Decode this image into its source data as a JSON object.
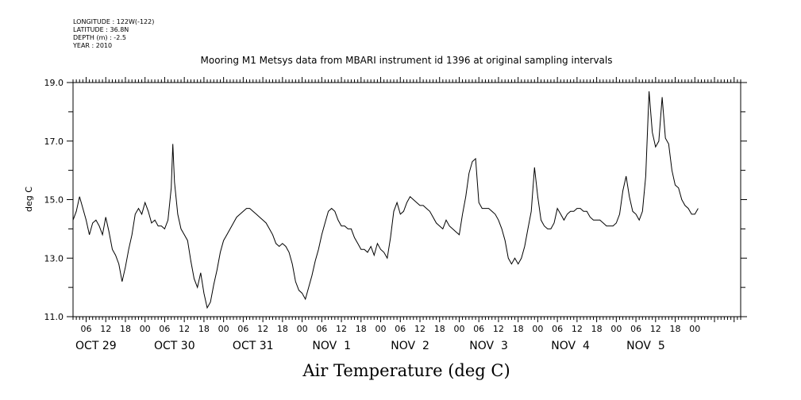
{
  "header": {
    "meta_lines": [
      "LONGITUDE : 122W(-122)",
      "LATITUDE : 36.8N",
      "DEPTH (m) : -2.5",
      "YEAR : 2010"
    ],
    "title": "Mooring M1 Metsys data from MBARI instrument id 1396 at original sampling intervals"
  },
  "chart_data": {
    "type": "line",
    "title": "Mooring M1 Metsys data from MBARI instrument id 1396 at original sampling intervals",
    "xlabel": "Air Temperature (deg C)",
    "ylabel": "deg C",
    "ylim": [
      11.0,
      19.0
    ],
    "y_ticks": [
      "11.0",
      "13.0",
      "15.0",
      "17.0",
      "19.0"
    ],
    "x_hour_labels": [
      "06",
      "12",
      "18",
      "00",
      "06",
      "12",
      "18",
      "00",
      "06",
      "12",
      "18",
      "00",
      "06",
      "12",
      "18",
      "00",
      "06",
      "12",
      "18",
      "00",
      "06",
      "12",
      "18",
      "00",
      "06",
      "12",
      "18",
      "00",
      "06",
      "12",
      "18",
      "00"
    ],
    "x_date_labels": [
      "OCT 29",
      "OCT 30",
      "OCT 31",
      "NOV  1",
      "NOV  2",
      "NOV  3",
      "NOV  4",
      "NOV  5"
    ],
    "x_range_hours_from_oct29_00": [
      2,
      206
    ],
    "grid": false,
    "series": [
      {
        "values": [
          [
            2,
            14.3
          ],
          [
            3,
            14.6
          ],
          [
            4,
            15.1
          ],
          [
            5,
            14.7
          ],
          [
            6,
            14.3
          ],
          [
            7,
            13.8
          ],
          [
            8,
            14.2
          ],
          [
            9,
            14.3
          ],
          [
            10,
            14.1
          ],
          [
            11,
            13.8
          ],
          [
            12,
            14.4
          ],
          [
            13,
            13.9
          ],
          [
            14,
            13.3
          ],
          [
            15,
            13.1
          ],
          [
            16,
            12.8
          ],
          [
            17,
            12.2
          ],
          [
            18,
            12.7
          ],
          [
            19,
            13.3
          ],
          [
            20,
            13.8
          ],
          [
            21,
            14.5
          ],
          [
            22,
            14.7
          ],
          [
            23,
            14.5
          ],
          [
            24,
            14.9
          ],
          [
            25,
            14.6
          ],
          [
            26,
            14.2
          ],
          [
            27,
            14.3
          ],
          [
            28,
            14.1
          ],
          [
            29,
            14.1
          ],
          [
            30,
            14.0
          ],
          [
            31,
            14.3
          ],
          [
            32,
            15.4
          ],
          [
            32.5,
            16.9
          ],
          [
            33,
            15.6
          ],
          [
            34,
            14.5
          ],
          [
            35,
            14.0
          ],
          [
            36,
            13.8
          ],
          [
            37,
            13.6
          ],
          [
            38,
            12.9
          ],
          [
            39,
            12.3
          ],
          [
            40,
            12.0
          ],
          [
            41,
            12.5
          ],
          [
            42,
            11.8
          ],
          [
            43,
            11.3
          ],
          [
            44,
            11.5
          ],
          [
            45,
            12.1
          ],
          [
            46,
            12.6
          ],
          [
            47,
            13.2
          ],
          [
            48,
            13.6
          ],
          [
            49,
            13.8
          ],
          [
            50,
            14.0
          ],
          [
            51,
            14.2
          ],
          [
            52,
            14.4
          ],
          [
            53,
            14.5
          ],
          [
            54,
            14.6
          ],
          [
            55,
            14.7
          ],
          [
            56,
            14.7
          ],
          [
            57,
            14.6
          ],
          [
            58,
            14.5
          ],
          [
            59,
            14.4
          ],
          [
            60,
            14.3
          ],
          [
            61,
            14.2
          ],
          [
            62,
            14.0
          ],
          [
            63,
            13.8
          ],
          [
            64,
            13.5
          ],
          [
            65,
            13.4
          ],
          [
            66,
            13.5
          ],
          [
            67,
            13.4
          ],
          [
            68,
            13.2
          ],
          [
            69,
            12.8
          ],
          [
            70,
            12.2
          ],
          [
            71,
            11.9
          ],
          [
            72,
            11.8
          ],
          [
            73,
            11.6
          ],
          [
            74,
            12.0
          ],
          [
            75,
            12.4
          ],
          [
            76,
            12.9
          ],
          [
            77,
            13.3
          ],
          [
            78,
            13.8
          ],
          [
            79,
            14.2
          ],
          [
            80,
            14.6
          ],
          [
            81,
            14.7
          ],
          [
            82,
            14.6
          ],
          [
            83,
            14.3
          ],
          [
            84,
            14.1
          ],
          [
            85,
            14.1
          ],
          [
            86,
            14.0
          ],
          [
            87,
            14.0
          ],
          [
            88,
            13.7
          ],
          [
            89,
            13.5
          ],
          [
            90,
            13.3
          ],
          [
            91,
            13.3
          ],
          [
            92,
            13.2
          ],
          [
            93,
            13.4
          ],
          [
            94,
            13.1
          ],
          [
            95,
            13.5
          ],
          [
            96,
            13.3
          ],
          [
            97,
            13.2
          ],
          [
            98,
            13.0
          ],
          [
            99,
            13.7
          ],
          [
            100,
            14.6
          ],
          [
            101,
            14.9
          ],
          [
            102,
            14.5
          ],
          [
            103,
            14.6
          ],
          [
            104,
            14.9
          ],
          [
            105,
            15.1
          ],
          [
            106,
            15.0
          ],
          [
            107,
            14.9
          ],
          [
            108,
            14.8
          ],
          [
            109,
            14.8
          ],
          [
            110,
            14.7
          ],
          [
            111,
            14.6
          ],
          [
            112,
            14.4
          ],
          [
            113,
            14.2
          ],
          [
            114,
            14.1
          ],
          [
            115,
            14.0
          ],
          [
            116,
            14.3
          ],
          [
            117,
            14.1
          ],
          [
            118,
            14.0
          ],
          [
            119,
            13.9
          ],
          [
            120,
            13.8
          ],
          [
            121,
            14.5
          ],
          [
            122,
            15.1
          ],
          [
            123,
            15.9
          ],
          [
            124,
            16.3
          ],
          [
            125,
            16.4
          ],
          [
            126,
            14.9
          ],
          [
            127,
            14.7
          ],
          [
            128,
            14.7
          ],
          [
            129,
            14.7
          ],
          [
            130,
            14.6
          ],
          [
            131,
            14.5
          ],
          [
            132,
            14.3
          ],
          [
            133,
            14.0
          ],
          [
            134,
            13.6
          ],
          [
            135,
            13.0
          ],
          [
            136,
            12.8
          ],
          [
            137,
            13.0
          ],
          [
            138,
            12.8
          ],
          [
            139,
            13.0
          ],
          [
            140,
            13.4
          ],
          [
            141,
            14.0
          ],
          [
            142,
            14.6
          ],
          [
            143,
            16.1
          ],
          [
            144,
            15.1
          ],
          [
            145,
            14.3
          ],
          [
            146,
            14.1
          ],
          [
            147,
            14.0
          ],
          [
            148,
            14.0
          ],
          [
            149,
            14.2
          ],
          [
            150,
            14.7
          ],
          [
            151,
            14.5
          ],
          [
            152,
            14.3
          ],
          [
            153,
            14.5
          ],
          [
            154,
            14.6
          ],
          [
            155,
            14.6
          ],
          [
            156,
            14.7
          ],
          [
            157,
            14.7
          ],
          [
            158,
            14.6
          ],
          [
            159,
            14.6
          ],
          [
            160,
            14.4
          ],
          [
            161,
            14.3
          ],
          [
            162,
            14.3
          ],
          [
            163,
            14.3
          ],
          [
            164,
            14.2
          ],
          [
            165,
            14.1
          ],
          [
            166,
            14.1
          ],
          [
            167,
            14.1
          ],
          [
            168,
            14.2
          ],
          [
            169,
            14.5
          ],
          [
            170,
            15.3
          ],
          [
            171,
            15.8
          ],
          [
            172,
            15.1
          ],
          [
            173,
            14.6
          ],
          [
            174,
            14.5
          ],
          [
            175,
            14.3
          ],
          [
            176,
            14.6
          ],
          [
            177,
            15.8
          ],
          [
            178,
            18.7
          ],
          [
            179,
            17.3
          ],
          [
            180,
            16.8
          ],
          [
            181,
            17.0
          ],
          [
            182,
            18.5
          ],
          [
            183,
            17.1
          ],
          [
            184,
            16.9
          ],
          [
            185,
            16.0
          ],
          [
            186,
            15.5
          ],
          [
            187,
            15.4
          ],
          [
            188,
            15.0
          ],
          [
            189,
            14.8
          ],
          [
            190,
            14.7
          ],
          [
            191,
            14.5
          ],
          [
            192,
            14.5
          ],
          [
            193,
            14.7
          ]
        ]
      }
    ]
  }
}
